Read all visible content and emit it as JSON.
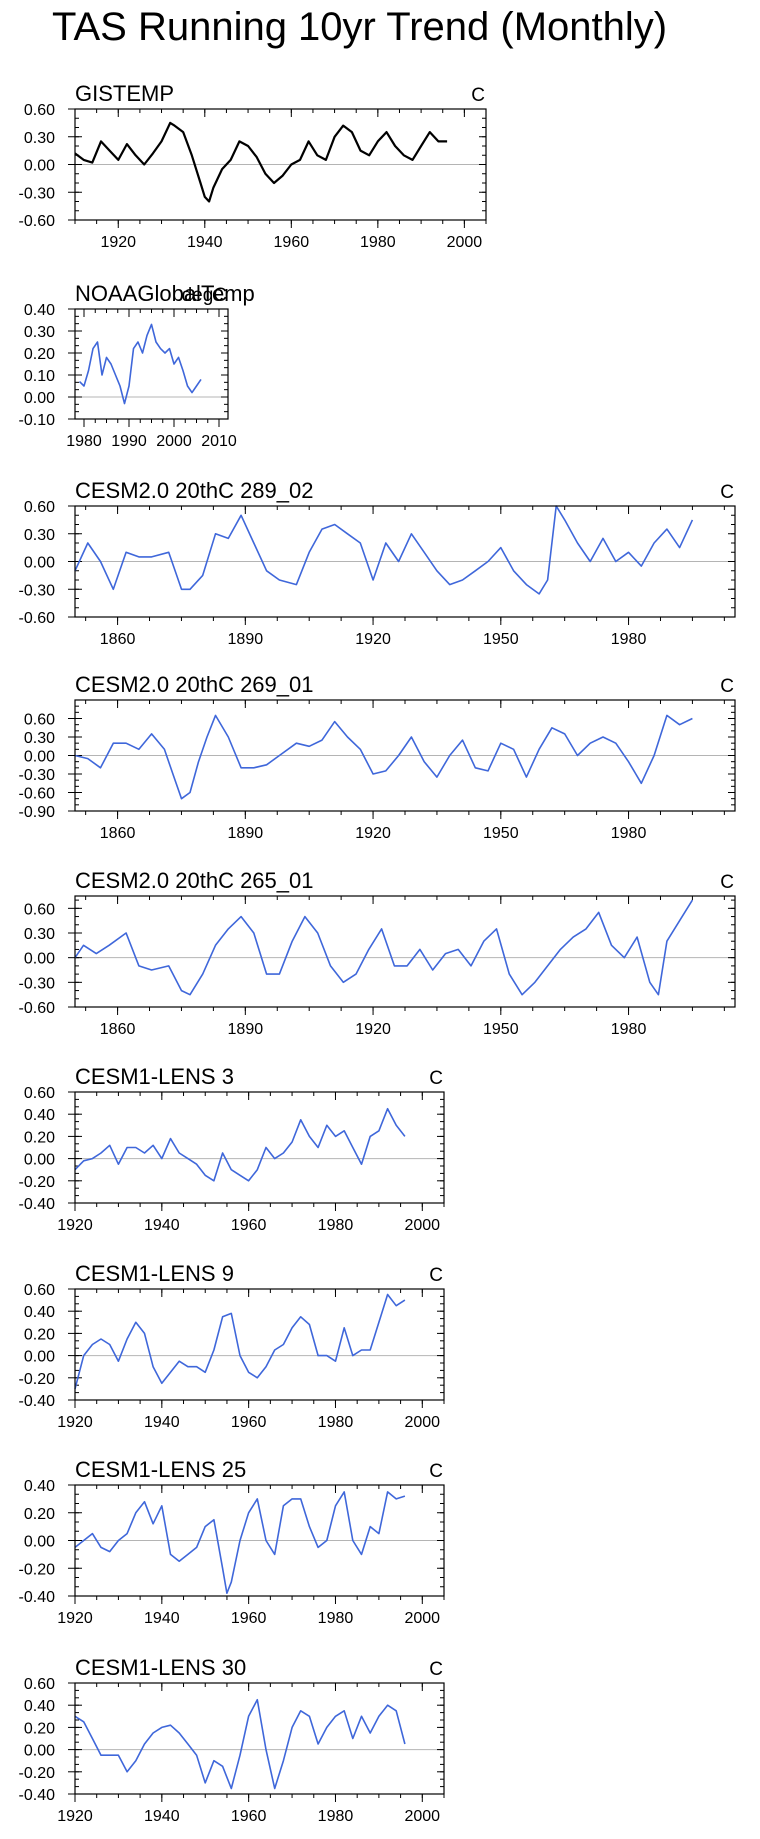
{
  "page": {
    "title": "TAS Running 10yr Trend (Monthly)"
  },
  "colors": {
    "obs_line": "#000000",
    "model_line": "#3F67DA",
    "zero_line": "#b4b4b4",
    "axis": "#000000"
  },
  "chart_data": [
    {
      "type": "line",
      "title": "GISTEMP",
      "units": "C",
      "series_color": "obs_line",
      "xlim": [
        1910,
        2005
      ],
      "ylim": [
        -0.6,
        0.6
      ],
      "xticks": [
        1920,
        1940,
        1960,
        1980,
        2000
      ],
      "yticks": [
        -0.6,
        -0.3,
        0.0,
        0.3,
        0.6
      ],
      "ytick_labels": [
        "-0.60",
        "-0.30",
        "0.00",
        "0.30",
        "0.60"
      ],
      "x": [
        1910,
        1912,
        1914,
        1916,
        1918,
        1920,
        1922,
        1924,
        1926,
        1928,
        1930,
        1932,
        1933,
        1935,
        1937,
        1939,
        1940,
        1941,
        1942,
        1944,
        1946,
        1948,
        1950,
        1952,
        1954,
        1956,
        1958,
        1960,
        1962,
        1964,
        1966,
        1968,
        1970,
        1972,
        1974,
        1976,
        1978,
        1980,
        1982,
        1984,
        1986,
        1988,
        1990,
        1992,
        1994,
        1996
      ],
      "values": [
        0.12,
        0.05,
        0.02,
        0.25,
        0.15,
        0.05,
        0.22,
        0.1,
        0.0,
        0.12,
        0.25,
        0.45,
        0.42,
        0.35,
        0.1,
        -0.2,
        -0.35,
        -0.4,
        -0.25,
        -0.05,
        0.05,
        0.25,
        0.2,
        0.08,
        -0.1,
        -0.2,
        -0.12,
        0.0,
        0.05,
        0.25,
        0.1,
        0.05,
        0.3,
        0.42,
        0.35,
        0.15,
        0.1,
        0.25,
        0.35,
        0.2,
        0.1,
        0.05,
        0.2,
        0.35,
        0.25,
        0.25
      ]
    },
    {
      "type": "line",
      "title": "NOAAGlobalTemp",
      "units": "degC",
      "series_color": "model_line",
      "xlim": [
        1978,
        2012
      ],
      "ylim": [
        -0.1,
        0.4
      ],
      "xticks": [
        1980,
        1990,
        2000,
        2010
      ],
      "yticks": [
        -0.1,
        0.0,
        0.1,
        0.2,
        0.3,
        0.4
      ],
      "ytick_labels": [
        "-0.10",
        "0.00",
        "0.10",
        "0.20",
        "0.30",
        "0.40"
      ],
      "x": [
        1979,
        1980,
        1981,
        1982,
        1983,
        1984,
        1985,
        1986,
        1987,
        1988,
        1989,
        1990,
        1991,
        1992,
        1993,
        1994,
        1995,
        1996,
        1997,
        1998,
        1999,
        2000,
        2001,
        2002,
        2003,
        2004,
        2005,
        2006
      ],
      "values": [
        0.07,
        0.05,
        0.12,
        0.22,
        0.25,
        0.1,
        0.18,
        0.15,
        0.1,
        0.05,
        -0.03,
        0.05,
        0.22,
        0.25,
        0.2,
        0.28,
        0.33,
        0.25,
        0.22,
        0.2,
        0.22,
        0.15,
        0.18,
        0.12,
        0.05,
        0.02,
        0.05,
        0.08
      ]
    },
    {
      "type": "line",
      "title": "CESM2.0 20thC 289_02",
      "units": "C",
      "series_color": "model_line",
      "xlim": [
        1850,
        2005
      ],
      "ylim": [
        -0.6,
        0.6
      ],
      "xticks": [
        1860,
        1890,
        1920,
        1950,
        1980
      ],
      "yticks": [
        -0.6,
        -0.3,
        0.0,
        0.3,
        0.6
      ],
      "ytick_labels": [
        "-0.60",
        "-0.30",
        "0.00",
        "0.30",
        "0.60"
      ],
      "x": [
        1850,
        1853,
        1856,
        1859,
        1862,
        1865,
        1868,
        1872,
        1875,
        1877,
        1880,
        1883,
        1886,
        1889,
        1892,
        1895,
        1898,
        1902,
        1905,
        1908,
        1911,
        1914,
        1917,
        1920,
        1923,
        1926,
        1929,
        1932,
        1935,
        1938,
        1941,
        1944,
        1947,
        1950,
        1953,
        1956,
        1959,
        1961,
        1963,
        1965,
        1968,
        1971,
        1974,
        1977,
        1980,
        1983,
        1986,
        1989,
        1992,
        1995
      ],
      "values": [
        -0.1,
        0.2,
        0.0,
        -0.3,
        0.1,
        0.05,
        0.05,
        0.1,
        -0.3,
        -0.3,
        -0.15,
        0.3,
        0.25,
        0.5,
        0.2,
        -0.1,
        -0.2,
        -0.25,
        0.1,
        0.35,
        0.4,
        0.3,
        0.2,
        -0.2,
        0.2,
        0.0,
        0.3,
        0.1,
        -0.1,
        -0.25,
        -0.2,
        -0.1,
        0.0,
        0.15,
        -0.1,
        -0.25,
        -0.35,
        -0.2,
        0.6,
        0.45,
        0.2,
        0.0,
        0.25,
        0.0,
        0.1,
        -0.05,
        0.2,
        0.35,
        0.15,
        0.45
      ]
    },
    {
      "type": "line",
      "title": "CESM2.0 20thC 269_01",
      "units": "C",
      "series_color": "model_line",
      "xlim": [
        1850,
        2005
      ],
      "ylim": [
        -0.9,
        0.9
      ],
      "xticks": [
        1860,
        1890,
        1920,
        1950,
        1980
      ],
      "yticks": [
        -0.9,
        -0.6,
        -0.3,
        0.0,
        0.3,
        0.6
      ],
      "ytick_labels": [
        "-0.90",
        "-0.60",
        "-0.30",
        "0.00",
        "0.30",
        "0.60"
      ],
      "x": [
        1850,
        1853,
        1856,
        1859,
        1862,
        1865,
        1868,
        1871,
        1873,
        1875,
        1877,
        1879,
        1881,
        1883,
        1886,
        1889,
        1892,
        1895,
        1898,
        1902,
        1905,
        1908,
        1911,
        1914,
        1917,
        1920,
        1923,
        1926,
        1929,
        1932,
        1935,
        1938,
        1941,
        1944,
        1947,
        1950,
        1953,
        1956,
        1959,
        1962,
        1965,
        1968,
        1971,
        1974,
        1977,
        1980,
        1983,
        1986,
        1989,
        1992,
        1995
      ],
      "values": [
        0.0,
        -0.05,
        -0.2,
        0.2,
        0.2,
        0.1,
        0.35,
        0.1,
        -0.3,
        -0.7,
        -0.6,
        -0.1,
        0.3,
        0.65,
        0.3,
        -0.2,
        -0.2,
        -0.15,
        0.0,
        0.2,
        0.15,
        0.25,
        0.55,
        0.3,
        0.1,
        -0.3,
        -0.25,
        0.0,
        0.3,
        -0.1,
        -0.35,
        0.0,
        0.25,
        -0.2,
        -0.25,
        0.2,
        0.1,
        -0.35,
        0.1,
        0.45,
        0.35,
        0.0,
        0.2,
        0.3,
        0.2,
        -0.1,
        -0.45,
        0.0,
        0.65,
        0.5,
        0.6
      ]
    },
    {
      "type": "line",
      "title": "CESM2.0 20thC 265_01",
      "units": "C",
      "series_color": "model_line",
      "xlim": [
        1850,
        2005
      ],
      "ylim": [
        -0.6,
        0.75
      ],
      "xticks": [
        1860,
        1890,
        1920,
        1950,
        1980
      ],
      "yticks": [
        -0.6,
        -0.3,
        0.0,
        0.3,
        0.6
      ],
      "ytick_labels": [
        "-0.60",
        "-0.30",
        "0.00",
        "0.30",
        "0.60"
      ],
      "x": [
        1850,
        1852,
        1855,
        1858,
        1862,
        1865,
        1868,
        1872,
        1875,
        1877,
        1880,
        1883,
        1886,
        1889,
        1892,
        1895,
        1898,
        1901,
        1904,
        1907,
        1910,
        1913,
        1916,
        1919,
        1922,
        1925,
        1928,
        1931,
        1934,
        1937,
        1940,
        1943,
        1946,
        1949,
        1952,
        1955,
        1958,
        1961,
        1964,
        1967,
        1970,
        1973,
        1976,
        1979,
        1982,
        1985,
        1987,
        1989,
        1992,
        1995
      ],
      "values": [
        0.0,
        0.15,
        0.05,
        0.15,
        0.3,
        -0.1,
        -0.15,
        -0.1,
        -0.4,
        -0.45,
        -0.2,
        0.15,
        0.35,
        0.5,
        0.3,
        -0.2,
        -0.2,
        0.2,
        0.5,
        0.3,
        -0.1,
        -0.3,
        -0.2,
        0.1,
        0.35,
        -0.1,
        -0.1,
        0.1,
        -0.15,
        0.05,
        0.1,
        -0.1,
        0.2,
        0.35,
        -0.2,
        -0.45,
        -0.3,
        -0.1,
        0.1,
        0.25,
        0.35,
        0.55,
        0.15,
        0.0,
        0.25,
        -0.3,
        -0.45,
        0.2,
        0.45,
        0.7
      ]
    },
    {
      "type": "line",
      "title": "CESM1-LENS 3",
      "units": "C",
      "series_color": "model_line",
      "xlim": [
        1920,
        2005
      ],
      "ylim": [
        -0.4,
        0.6
      ],
      "xticks": [
        1920,
        1940,
        1960,
        1980,
        2000
      ],
      "yticks": [
        -0.4,
        -0.2,
        0.0,
        0.2,
        0.4,
        0.6
      ],
      "ytick_labels": [
        "-0.40",
        "-0.20",
        "0.00",
        "0.20",
        "0.40",
        "0.60"
      ],
      "x": [
        1920,
        1922,
        1924,
        1926,
        1928,
        1930,
        1932,
        1934,
        1936,
        1938,
        1940,
        1942,
        1944,
        1946,
        1948,
        1950,
        1952,
        1954,
        1956,
        1958,
        1960,
        1962,
        1964,
        1966,
        1968,
        1970,
        1972,
        1974,
        1976,
        1978,
        1980,
        1982,
        1984,
        1986,
        1988,
        1990,
        1992,
        1994,
        1996
      ],
      "values": [
        -0.1,
        -0.02,
        0.0,
        0.05,
        0.12,
        -0.05,
        0.1,
        0.1,
        0.05,
        0.12,
        0.0,
        0.18,
        0.05,
        0.0,
        -0.05,
        -0.15,
        -0.2,
        0.05,
        -0.1,
        -0.15,
        -0.2,
        -0.1,
        0.1,
        0.0,
        0.05,
        0.15,
        0.35,
        0.2,
        0.1,
        0.3,
        0.2,
        0.25,
        0.1,
        -0.05,
        0.2,
        0.25,
        0.45,
        0.3,
        0.2
      ]
    },
    {
      "type": "line",
      "title": "CESM1-LENS 9",
      "units": "C",
      "series_color": "model_line",
      "xlim": [
        1920,
        2005
      ],
      "ylim": [
        -0.4,
        0.6
      ],
      "xticks": [
        1920,
        1940,
        1960,
        1980,
        2000
      ],
      "yticks": [
        -0.4,
        -0.2,
        0.0,
        0.2,
        0.4,
        0.6
      ],
      "ytick_labels": [
        "-0.40",
        "-0.20",
        "0.00",
        "0.20",
        "0.40",
        "0.60"
      ],
      "x": [
        1920,
        1922,
        1924,
        1926,
        1928,
        1930,
        1932,
        1934,
        1936,
        1938,
        1940,
        1942,
        1944,
        1946,
        1948,
        1950,
        1952,
        1954,
        1956,
        1958,
        1960,
        1962,
        1964,
        1966,
        1968,
        1970,
        1972,
        1974,
        1976,
        1978,
        1980,
        1982,
        1984,
        1986,
        1988,
        1990,
        1992,
        1994,
        1996
      ],
      "values": [
        -0.3,
        0.0,
        0.1,
        0.15,
        0.1,
        -0.05,
        0.15,
        0.3,
        0.2,
        -0.1,
        -0.25,
        -0.15,
        -0.05,
        -0.1,
        -0.1,
        -0.15,
        0.05,
        0.35,
        0.38,
        0.0,
        -0.15,
        -0.2,
        -0.1,
        0.05,
        0.1,
        0.25,
        0.35,
        0.28,
        0.0,
        0.0,
        -0.05,
        0.25,
        0.0,
        0.05,
        0.05,
        0.3,
        0.55,
        0.45,
        0.5
      ]
    },
    {
      "type": "line",
      "title": "CESM1-LENS 25",
      "units": "C",
      "series_color": "model_line",
      "xlim": [
        1920,
        2005
      ],
      "ylim": [
        -0.4,
        0.4
      ],
      "xticks": [
        1920,
        1940,
        1960,
        1980,
        2000
      ],
      "yticks": [
        -0.4,
        -0.2,
        0.0,
        0.2,
        0.4
      ],
      "ytick_labels": [
        "-0.40",
        "-0.20",
        "0.00",
        "0.20",
        "0.40"
      ],
      "x": [
        1920,
        1922,
        1924,
        1926,
        1928,
        1930,
        1932,
        1934,
        1936,
        1938,
        1940,
        1942,
        1944,
        1946,
        1948,
        1950,
        1952,
        1954,
        1955,
        1956,
        1958,
        1960,
        1962,
        1964,
        1966,
        1968,
        1970,
        1972,
        1974,
        1976,
        1978,
        1980,
        1982,
        1984,
        1986,
        1988,
        1990,
        1992,
        1994,
        1996
      ],
      "values": [
        -0.05,
        0.0,
        0.05,
        -0.05,
        -0.08,
        0.0,
        0.05,
        0.2,
        0.28,
        0.12,
        0.25,
        -0.1,
        -0.15,
        -0.1,
        -0.05,
        0.1,
        0.15,
        -0.2,
        -0.38,
        -0.3,
        0.0,
        0.2,
        0.3,
        0.0,
        -0.1,
        0.25,
        0.3,
        0.3,
        0.1,
        -0.05,
        0.0,
        0.25,
        0.35,
        0.0,
        -0.1,
        0.1,
        0.05,
        0.35,
        0.3,
        0.32
      ]
    },
    {
      "type": "line",
      "title": "CESM1-LENS 30",
      "units": "C",
      "series_color": "model_line",
      "xlim": [
        1920,
        2005
      ],
      "ylim": [
        -0.4,
        0.6
      ],
      "xticks": [
        1920,
        1940,
        1960,
        1980,
        2000
      ],
      "yticks": [
        -0.4,
        -0.2,
        0.0,
        0.2,
        0.4,
        0.6
      ],
      "ytick_labels": [
        "-0.40",
        "-0.20",
        "0.00",
        "0.20",
        "0.40",
        "0.60"
      ],
      "x": [
        1920,
        1922,
        1924,
        1926,
        1928,
        1930,
        1932,
        1934,
        1936,
        1938,
        1940,
        1942,
        1944,
        1946,
        1948,
        1950,
        1952,
        1954,
        1956,
        1958,
        1960,
        1962,
        1964,
        1966,
        1968,
        1970,
        1972,
        1974,
        1976,
        1978,
        1980,
        1982,
        1984,
        1986,
        1988,
        1990,
        1992,
        1994,
        1996
      ],
      "values": [
        0.3,
        0.25,
        0.1,
        -0.05,
        -0.05,
        -0.05,
        -0.2,
        -0.1,
        0.05,
        0.15,
        0.2,
        0.22,
        0.15,
        0.05,
        -0.05,
        -0.3,
        -0.1,
        -0.15,
        -0.35,
        -0.05,
        0.3,
        0.45,
        0.0,
        -0.35,
        -0.1,
        0.2,
        0.35,
        0.3,
        0.05,
        0.2,
        0.3,
        0.35,
        0.1,
        0.3,
        0.15,
        0.3,
        0.4,
        0.35,
        0.05
      ]
    }
  ]
}
